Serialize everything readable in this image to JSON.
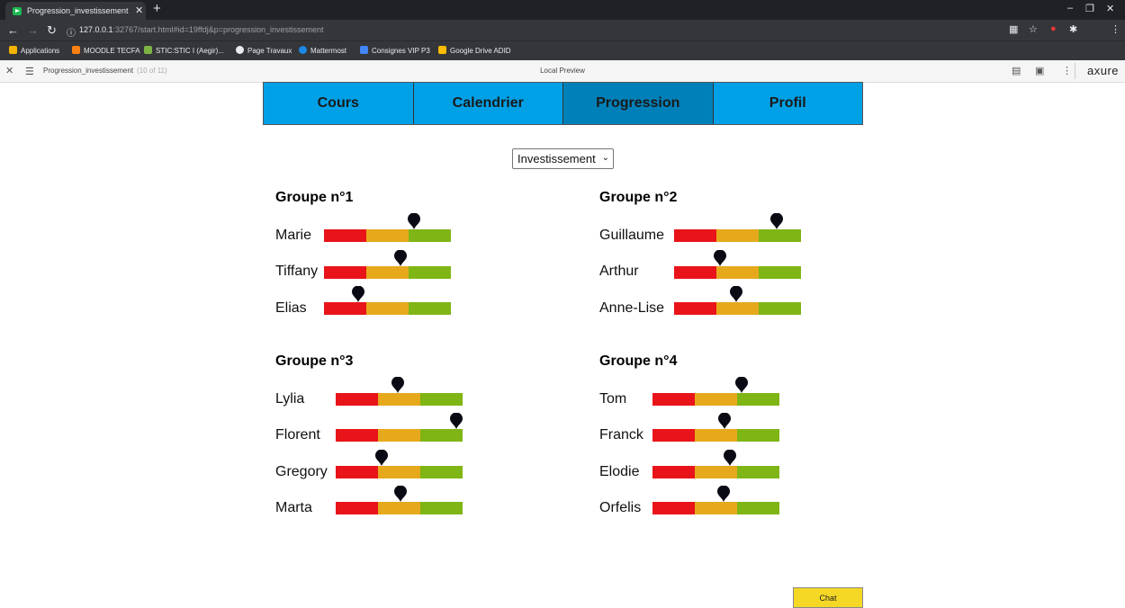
{
  "browser": {
    "tab_title": "Progression_investissement",
    "tab_close": "✕",
    "new_tab": "+",
    "url_host": "127.0.0.1",
    "url_rest": ":32767/start.html#id=19ffdj&p=progression_investissement",
    "avatar_letter": "E",
    "bookmarks": [
      {
        "label": "Applications",
        "color": "#f4b400"
      },
      {
        "label": "MOODLE TECFA",
        "color": "#f98012"
      },
      {
        "label": "STIC:STIC I (Aegir)...",
        "color": "#7cb342"
      },
      {
        "label": "Page Travaux",
        "color": "#e8eaed"
      },
      {
        "label": "Mattermost",
        "color": "#1e88e5"
      },
      {
        "label": "Consignes VIP P3",
        "color": "#4285f4"
      },
      {
        "label": "Google Drive ADID",
        "color": "#fbbc04"
      }
    ]
  },
  "axure": {
    "page_name": "Progression_investissement",
    "page_count": "(10 of 11)",
    "preview_label": "Local Preview",
    "logo": "axure"
  },
  "nav": {
    "tabs": [
      {
        "label": "Cours",
        "active": false
      },
      {
        "label": "Calendrier",
        "active": false
      },
      {
        "label": "Progression",
        "active": true
      },
      {
        "label": "Profil",
        "active": false
      }
    ]
  },
  "filter": {
    "selected": "Investissement"
  },
  "colors": {
    "low": "#e8141a",
    "mid": "#e6a91c",
    "high": "#7fb515",
    "active_tab": "#0080b8",
    "tab": "#00a0e6"
  },
  "groups": [
    {
      "title": "Groupe n°1",
      "students": [
        {
          "name": "Marie",
          "level": 0.71
        },
        {
          "name": "Tiffany",
          "level": 0.6
        },
        {
          "name": "Elias",
          "level": 0.27
        }
      ]
    },
    {
      "title": "Groupe n°2",
      "students": [
        {
          "name": "Guillaume",
          "level": 0.81
        },
        {
          "name": "Arthur",
          "level": 0.36
        },
        {
          "name": "Anne-Lise",
          "level": 0.49
        }
      ]
    },
    {
      "title": "Groupe n°3",
      "students": [
        {
          "name": "Lylia",
          "level": 0.49
        },
        {
          "name": "Florent",
          "level": 0.95
        },
        {
          "name": "Gregory",
          "level": 0.36
        },
        {
          "name": "Marta",
          "level": 0.51
        }
      ]
    },
    {
      "title": "Groupe n°4",
      "students": [
        {
          "name": "Tom",
          "level": 0.7
        },
        {
          "name": "Franck",
          "level": 0.57
        },
        {
          "name": "Elodie",
          "level": 0.61
        },
        {
          "name": "Orfelis",
          "level": 0.56
        }
      ]
    }
  ],
  "chat": {
    "label": "Chat"
  }
}
